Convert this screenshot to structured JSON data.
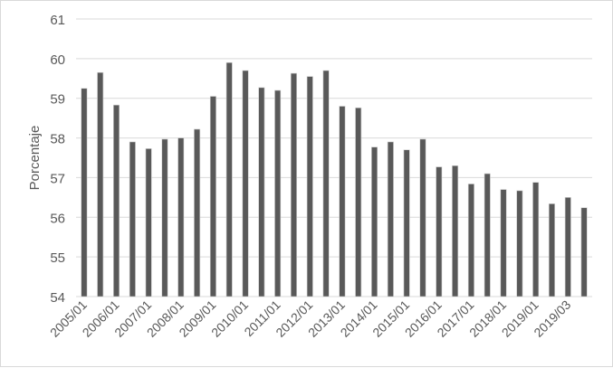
{
  "chart_data": {
    "type": "bar",
    "title": "",
    "xlabel": "",
    "ylabel": "Porcentaje",
    "ylim": [
      54,
      61
    ],
    "yticks": [
      54,
      55,
      56,
      57,
      58,
      59,
      60,
      61
    ],
    "grid": true,
    "bar_color": "#595959",
    "categories": [
      "2005/01",
      "",
      "2006/01",
      "",
      "2007/01",
      "",
      "2008/01",
      "",
      "2009/01",
      "",
      "2010/01",
      "",
      "2011/01",
      "",
      "2012/01",
      "",
      "2013/01",
      "",
      "2014/01",
      "",
      "2015/01",
      "",
      "2016/01",
      "",
      "2017/01",
      "",
      "2018/01",
      "",
      "2019/01",
      "",
      "2019/03",
      ""
    ],
    "values": [
      59.25,
      59.65,
      58.83,
      57.9,
      57.73,
      57.97,
      58.0,
      58.22,
      59.05,
      59.9,
      59.7,
      59.27,
      59.2,
      59.63,
      59.55,
      59.7,
      58.8,
      58.76,
      57.77,
      57.9,
      57.7,
      57.97,
      57.27,
      57.3,
      56.84,
      57.1,
      56.7,
      56.67,
      56.88,
      56.34,
      56.5,
      56.24
    ]
  }
}
